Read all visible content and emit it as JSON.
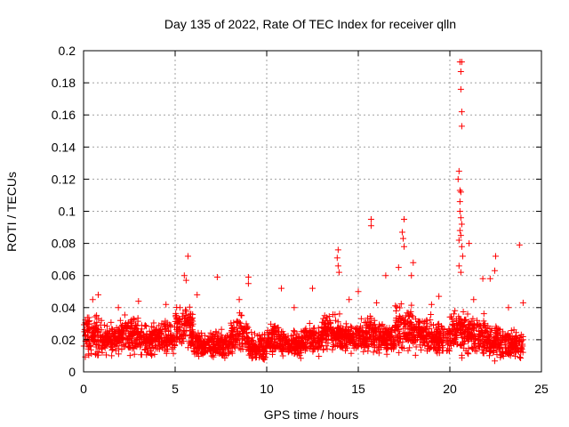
{
  "chart_data": {
    "type": "scatter",
    "title": "Day 135 of 2022, Rate Of TEC Index for receiver qlln",
    "xlabel": "GPS time / hours",
    "ylabel": "ROTI / TECUs",
    "xlim": [
      0,
      25
    ],
    "ylim": [
      0,
      0.2
    ],
    "x_ticks": [
      0,
      5,
      10,
      15,
      20,
      25
    ],
    "x_tick_labels": [
      "0",
      "5",
      "10",
      "15",
      "20",
      "25"
    ],
    "y_ticks": [
      0,
      0.02,
      0.04,
      0.06,
      0.08,
      0.1,
      0.12,
      0.14,
      0.16,
      0.18,
      0.2
    ],
    "y_tick_labels": [
      "0",
      "0.02",
      "0.04",
      "0.06",
      "0.08",
      "0.1",
      "0.12",
      "0.14",
      "0.16",
      "0.18",
      "0.2"
    ],
    "grid": true,
    "marker": "plus",
    "color": "#ff0000",
    "baseline_hourly_band": [
      [
        0.005,
        0.035
      ],
      [
        0.008,
        0.03
      ],
      [
        0.008,
        0.035
      ],
      [
        0.007,
        0.03
      ],
      [
        0.008,
        0.03
      ],
      [
        0.008,
        0.04
      ],
      [
        0.005,
        0.025
      ],
      [
        0.005,
        0.025
      ],
      [
        0.007,
        0.035
      ],
      [
        0.003,
        0.025
      ],
      [
        0.006,
        0.03
      ],
      [
        0.006,
        0.025
      ],
      [
        0.008,
        0.03
      ],
      [
        0.01,
        0.035
      ],
      [
        0.01,
        0.03
      ],
      [
        0.008,
        0.035
      ],
      [
        0.008,
        0.03
      ],
      [
        0.008,
        0.04
      ],
      [
        0.007,
        0.035
      ],
      [
        0.008,
        0.03
      ],
      [
        0.006,
        0.04
      ],
      [
        0.005,
        0.035
      ],
      [
        0.004,
        0.03
      ],
      [
        0.005,
        0.025
      ]
    ],
    "outliers": [
      [
        20.55,
        0.193
      ],
      [
        20.65,
        0.193
      ],
      [
        20.6,
        0.187
      ],
      [
        20.6,
        0.176
      ],
      [
        20.65,
        0.162
      ],
      [
        20.65,
        0.153
      ],
      [
        20.5,
        0.125
      ],
      [
        20.45,
        0.12
      ],
      [
        20.55,
        0.113
      ],
      [
        20.6,
        0.112
      ],
      [
        20.55,
        0.106
      ],
      [
        20.55,
        0.1
      ],
      [
        20.6,
        0.096
      ],
      [
        20.65,
        0.092
      ],
      [
        20.55,
        0.088
      ],
      [
        20.6,
        0.085
      ],
      [
        20.5,
        0.082
      ],
      [
        21.05,
        0.08
      ],
      [
        20.65,
        0.078
      ],
      [
        20.7,
        0.072
      ],
      [
        20.5,
        0.066
      ],
      [
        20.6,
        0.062
      ],
      [
        23.8,
        0.079
      ],
      [
        15.7,
        0.095
      ],
      [
        15.7,
        0.091
      ],
      [
        17.5,
        0.095
      ],
      [
        17.4,
        0.087
      ],
      [
        17.45,
        0.083
      ],
      [
        17.5,
        0.078
      ],
      [
        13.9,
        0.076
      ],
      [
        13.85,
        0.071
      ],
      [
        13.9,
        0.066
      ],
      [
        13.95,
        0.062
      ],
      [
        5.7,
        0.072
      ],
      [
        5.5,
        0.06
      ],
      [
        5.6,
        0.057
      ],
      [
        9.0,
        0.059
      ],
      [
        9.0,
        0.055
      ],
      [
        7.3,
        0.059
      ],
      [
        22.5,
        0.072
      ],
      [
        22.45,
        0.063
      ],
      [
        21.8,
        0.058
      ],
      [
        18.0,
        0.068
      ],
      [
        17.2,
        0.065
      ],
      [
        16.5,
        0.06
      ],
      [
        17.9,
        0.06
      ],
      [
        10.8,
        0.052
      ],
      [
        12.5,
        0.052
      ],
      [
        15.0,
        0.05
      ],
      [
        22.2,
        0.058
      ],
      [
        0.8,
        0.048
      ],
      [
        3.0,
        0.044
      ],
      [
        6.2,
        0.048
      ],
      [
        8.5,
        0.045
      ],
      [
        19.4,
        0.047
      ],
      [
        24.0,
        0.043
      ],
      [
        0.5,
        0.045
      ],
      [
        1.9,
        0.04
      ],
      [
        4.5,
        0.042
      ],
      [
        11.5,
        0.04
      ],
      [
        14.5,
        0.045
      ],
      [
        16.0,
        0.043
      ],
      [
        19.0,
        0.042
      ],
      [
        21.3,
        0.045
      ],
      [
        23.2,
        0.04
      ]
    ]
  }
}
